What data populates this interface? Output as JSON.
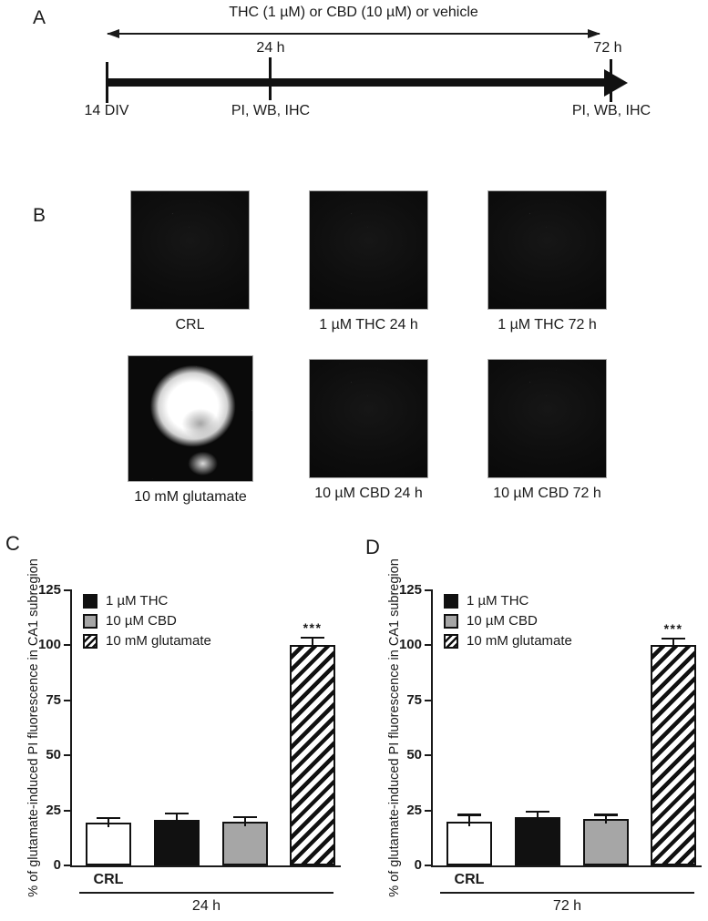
{
  "figure": {
    "panel_a": {
      "label": "A",
      "treatment_arrow_label": "THC (1 µM) or CBD (10 µM) or vehicle",
      "timeline": {
        "start_label": "14 DIV",
        "mid_time_label": "24 h",
        "mid_assay_label": "PI, WB, IHC",
        "end_time_label": "72 h",
        "end_assay_label": "PI, WB, IHC"
      }
    },
    "panel_b": {
      "label": "B",
      "images": [
        {
          "caption": "CRL",
          "appearance": "dark"
        },
        {
          "caption": "1 µM THC 24 h",
          "appearance": "dark"
        },
        {
          "caption": "1 µM THC 72 h",
          "appearance": "dark"
        },
        {
          "caption": "10 mM glutamate",
          "appearance": "bright"
        },
        {
          "caption": "10 µM CBD 24 h",
          "appearance": "dark"
        },
        {
          "caption": "10 µM CBD 72 h",
          "appearance": "dark"
        }
      ]
    }
  },
  "chart_data": [
    {
      "panel": "C",
      "type": "bar",
      "title": "",
      "ylabel": "% of glutamate-induced PI fluorescence in CA1 subregion",
      "xlabel": "",
      "ylim": [
        0,
        125
      ],
      "yticks": [
        0,
        25,
        50,
        75,
        100,
        125
      ],
      "grid": false,
      "categories": [
        "CRL",
        "1 µM THC",
        "10 µM CBD",
        "10 mM glutamate"
      ],
      "values": [
        19.5,
        20.5,
        20,
        100
      ],
      "errors": [
        1.5,
        2.5,
        1.5,
        3
      ],
      "bar_styles": [
        "white",
        "black",
        "gray",
        "hatched"
      ],
      "significance": {
        "bar_index": 3,
        "label": "***"
      },
      "x_first_label": "CRL",
      "x_group_label": "24 h",
      "legend_position": "upper-left",
      "legend": [
        {
          "label": "1 µM THC",
          "style": "black"
        },
        {
          "label": "10 µM CBD",
          "style": "gray"
        },
        {
          "label": "10 mM glutamate",
          "style": "hatched"
        }
      ]
    },
    {
      "panel": "D",
      "type": "bar",
      "title": "",
      "ylabel": "% of glutamate-induced PI fluorescence in CA1 subregion",
      "xlabel": "",
      "ylim": [
        0,
        125
      ],
      "yticks": [
        0,
        25,
        50,
        75,
        100,
        125
      ],
      "grid": false,
      "categories": [
        "CRL",
        "1 µM THC",
        "10 µM CBD",
        "10 mM glutamate"
      ],
      "values": [
        20,
        22,
        21,
        100
      ],
      "errors": [
        2.5,
        2,
        1.5,
        2.5
      ],
      "bar_styles": [
        "white",
        "black",
        "gray",
        "hatched"
      ],
      "significance": {
        "bar_index": 3,
        "label": "***"
      },
      "x_first_label": "CRL",
      "x_group_label": "72 h",
      "legend_position": "upper-left",
      "legend": [
        {
          "label": "1 µM THC",
          "style": "black"
        },
        {
          "label": "10 µM CBD",
          "style": "gray"
        },
        {
          "label": "10 mM glutamate",
          "style": "hatched"
        }
      ]
    }
  ],
  "colors": {
    "ink": "#1a1a1a",
    "bar_black": "#111111",
    "bar_gray": "#a6a6a6",
    "bar_white": "#ffffff",
    "micrograph_background": "#0d0d0d"
  }
}
